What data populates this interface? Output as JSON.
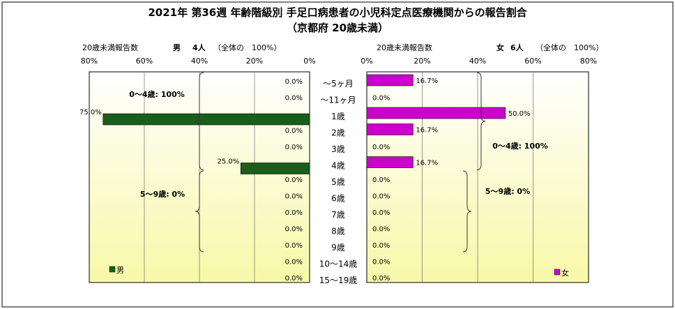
{
  "title": {
    "line1": "2021年 第36週 年齢階級別 手足口病患者の小児科定点医療機関からの報告割合",
    "line2": "（京都府 20歳未満）"
  },
  "colors": {
    "male": "#1a5e1a",
    "female": "#cc00cc",
    "plot_bg_top": "#ffffff",
    "plot_bg_bottom": "#f8f8a8",
    "grid": "#555555"
  },
  "male_panel": {
    "header_label": "20歳未満報告数",
    "gender": "男",
    "count": "4人",
    "note": "（全体の　100%）",
    "ticks": [
      "80%",
      "60%",
      "40%",
      "20%",
      "0%"
    ],
    "legend": "男",
    "groups": [
      {
        "label": "0～4歳: 100%",
        "from_index": 0,
        "to_index": 5
      },
      {
        "label": "5～9歳: 0%",
        "from_index": 6,
        "to_index": 10
      }
    ]
  },
  "female_panel": {
    "header_label": "20歳未満報告数",
    "gender": "女",
    "count": "6人",
    "note": "（全体の　100%）",
    "ticks": [
      "0%",
      "20%",
      "40%",
      "60%",
      "80%"
    ],
    "legend": "女",
    "groups": [
      {
        "label": "0～4歳: 100%",
        "from_index": 0,
        "to_index": 5
      },
      {
        "label": "5～9歳: 0%",
        "from_index": 6,
        "to_index": 10
      }
    ]
  },
  "chart_data": {
    "type": "bar",
    "orientation": "horizontal",
    "xlim": [
      0,
      80
    ],
    "categories": [
      "～5ヶ月",
      "～11ヶ月",
      "1歳",
      "2歳",
      "3歳",
      "4歳",
      "5歳",
      "6歳",
      "7歳",
      "8歳",
      "9歳",
      "10～14歳",
      "15～19歳"
    ],
    "series": [
      {
        "name": "男",
        "values": [
          0,
          0,
          75,
          0,
          0,
          25,
          0,
          0,
          0,
          0,
          0,
          0,
          0
        ],
        "labels": [
          "0.0%",
          "0.0%",
          "75.0%",
          "0.0%",
          "0.0%",
          "25.0%",
          "0.0%",
          "0.0%",
          "0.0%",
          "0.0%",
          "0.0%",
          "0.0%",
          "0.0%"
        ]
      },
      {
        "name": "女",
        "values": [
          16.7,
          0,
          50,
          16.7,
          0,
          16.7,
          0,
          0,
          0,
          0,
          0,
          0,
          0
        ],
        "labels": [
          "16.7%",
          "0.0%",
          "50.0%",
          "16.7%",
          "0.0%",
          "16.7%",
          "0.0%",
          "0.0%",
          "0.0%",
          "0.0%",
          "0.0%",
          "0.0%",
          "0.0%"
        ]
      }
    ]
  }
}
